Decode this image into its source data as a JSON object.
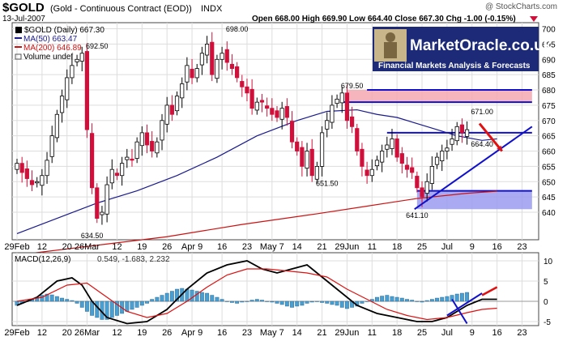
{
  "header": {
    "symbol": "$GOLD",
    "description": "(Gold - Continuous Contract (EOD))",
    "exchange": "INDX",
    "date": "13-Jul-2007",
    "copyright": "@ StockCharts.com",
    "ohlc": "Open 668.00  High 669.90  Low 664.40  Close 667.30  Chg -1.00 (-0.15%)",
    "ohlc_arrow_icon": "down-triangle-icon"
  },
  "legend": {
    "symbol_line": "$GOLD (Daily) 667.30",
    "ma50": "MA(50) 663.47",
    "ma200": "MA(200) 646.89",
    "volume": "Volume undef"
  },
  "logo": {
    "name": "MarketOracle.co.uk",
    "tagline": "Financial Markets Analysis & Forecasts"
  },
  "colors": {
    "up_candle": "#ffffff",
    "down_candle": "#d0103a",
    "ma50": "#1a1a8c",
    "ma200": "#cc1111",
    "resistance_zone": "#f4a7b0",
    "support_zone": "#9b9bf0",
    "trend_line": "#1010cc",
    "annotation_arrow": "#e01010",
    "macd_line": "#000000",
    "signal_line": "#dd1111",
    "histogram": "#4a9fd0"
  },
  "chart_data": [
    {
      "type": "candlestick",
      "ylim": [
        631,
        702
      ],
      "yticks": [
        640,
        645,
        650,
        655,
        660,
        665,
        670,
        675,
        680,
        685,
        690,
        695,
        700
      ],
      "xticks": [
        {
          "day": 0,
          "label": "29Feb"
        },
        {
          "day": 5,
          "label": "12"
        },
        {
          "day": 10,
          "label": "20"
        },
        {
          "day": 14,
          "label": "26Mar"
        },
        {
          "day": 20,
          "label": "12"
        },
        {
          "day": 25,
          "label": "19"
        },
        {
          "day": 30,
          "label": "26"
        },
        {
          "day": 35,
          "label": "Apr 9"
        },
        {
          "day": 41,
          "label": "16"
        },
        {
          "day": 46,
          "label": "23"
        },
        {
          "day": 51,
          "label": "May 7"
        },
        {
          "day": 56,
          "label": "14"
        },
        {
          "day": 61,
          "label": "21"
        },
        {
          "day": 66,
          "label": "29Jun"
        },
        {
          "day": 71,
          "label": "11"
        },
        {
          "day": 76,
          "label": "18"
        },
        {
          "day": 81,
          "label": "25"
        },
        {
          "day": 86,
          "label": "Jul"
        },
        {
          "day": 91,
          "label": "9"
        },
        {
          "day": 96,
          "label": "16"
        },
        {
          "day": 101,
          "label": "23"
        }
      ],
      "annotations": [
        {
          "day": 16,
          "price": 692.5,
          "label": "692.50"
        },
        {
          "day": 15,
          "price": 634.5,
          "label": "634.50"
        },
        {
          "day": 44,
          "price": 698.0,
          "label": "698.00"
        },
        {
          "day": 67,
          "price": 679.5,
          "label": "679.50"
        },
        {
          "day": 62,
          "price": 651.5,
          "label": "651.50"
        },
        {
          "day": 80,
          "price": 641.1,
          "label": "641.10"
        },
        {
          "day": 93,
          "price": 671.0,
          "label": "671.00"
        },
        {
          "day": 93,
          "price": 664.4,
          "label": "664.40"
        }
      ],
      "zones": [
        {
          "name": "resistance",
          "from_day": 66,
          "to_day": 103,
          "low": 676,
          "high": 680
        },
        {
          "name": "support",
          "from_day": 80,
          "to_day": 103,
          "low": 641,
          "high": 647
        }
      ],
      "hlines": [
        {
          "from_day": 70,
          "to_day": 103,
          "price": 680
        },
        {
          "from_day": 65,
          "to_day": 103,
          "price": 676
        },
        {
          "from_day": 74,
          "to_day": 103,
          "price": 666
        },
        {
          "from_day": 80,
          "to_day": 103,
          "price": 647
        }
      ],
      "trend_lines": [
        {
          "from": [
            79.5,
            641
          ],
          "to": [
            103,
            668
          ]
        }
      ],
      "arrows": [
        {
          "from": [
            92.5,
            669
          ],
          "to": [
            97,
            660
          ]
        }
      ],
      "ma50": [
        [
          0,
          633
        ],
        [
          8,
          638
        ],
        [
          16,
          643
        ],
        [
          24,
          647
        ],
        [
          32,
          652
        ],
        [
          40,
          658
        ],
        [
          48,
          665
        ],
        [
          56,
          670
        ],
        [
          62,
          673
        ],
        [
          68,
          673.5
        ],
        [
          72,
          672
        ],
        [
          76,
          671
        ],
        [
          80,
          669
        ],
        [
          84,
          667
        ],
        [
          88,
          665
        ],
        [
          93,
          663.5
        ],
        [
          96,
          664
        ]
      ],
      "ma200": [
        [
          0,
          626
        ],
        [
          15,
          629
        ],
        [
          30,
          632
        ],
        [
          45,
          636
        ],
        [
          60,
          639.5
        ],
        [
          70,
          642
        ],
        [
          80,
          644.5
        ],
        [
          90,
          646.2
        ],
        [
          96,
          646.9
        ]
      ],
      "closes": [
        656,
        653,
        651,
        649,
        650,
        652,
        657,
        665,
        672,
        678,
        684,
        688,
        690,
        692,
        667,
        648,
        638,
        640,
        649,
        654,
        652,
        656,
        658,
        657,
        663,
        666,
        662,
        660,
        663,
        670,
        675,
        672,
        678,
        682,
        688,
        684,
        687,
        692,
        695,
        685,
        690,
        692,
        689,
        687,
        684,
        681,
        679,
        674,
        676,
        676,
        674,
        672,
        671,
        674,
        671,
        663,
        660,
        655,
        660,
        652,
        655,
        666,
        670,
        675,
        677,
        679,
        670,
        668,
        660,
        655,
        652,
        654,
        657,
        660,
        662,
        664,
        658,
        656,
        654,
        653,
        648,
        645,
        650,
        655,
        658,
        660,
        661,
        664,
        668,
        666,
        667
      ]
    },
    {
      "type": "line",
      "title": "MACD(12,26,9)",
      "values": "0.549, -1.683, 2.232",
      "ylim": [
        -6,
        12
      ],
      "yticks": [
        -5,
        0,
        5,
        10
      ],
      "macd": [
        [
          0,
          -1
        ],
        [
          4,
          1
        ],
        [
          8,
          5
        ],
        [
          11,
          5.8
        ],
        [
          13,
          4
        ],
        [
          15,
          0
        ],
        [
          18,
          -4
        ],
        [
          22,
          -5.5
        ],
        [
          26,
          -5
        ],
        [
          30,
          -2
        ],
        [
          34,
          3
        ],
        [
          38,
          7
        ],
        [
          42,
          9
        ],
        [
          46,
          10
        ],
        [
          49,
          8
        ],
        [
          52,
          7
        ],
        [
          55,
          8
        ],
        [
          58,
          9
        ],
        [
          61,
          6
        ],
        [
          64,
          3
        ],
        [
          68,
          -1
        ],
        [
          72,
          -3
        ],
        [
          76,
          -4
        ],
        [
          80,
          -5
        ],
        [
          83,
          -5
        ],
        [
          86,
          -4
        ],
        [
          90,
          -1
        ],
        [
          93,
          0.5
        ],
        [
          96,
          0.5
        ]
      ],
      "signal": [
        [
          0,
          0
        ],
        [
          5,
          1
        ],
        [
          10,
          4
        ],
        [
          14,
          4.5
        ],
        [
          18,
          1
        ],
        [
          22,
          -2.5
        ],
        [
          26,
          -4
        ],
        [
          30,
          -3
        ],
        [
          34,
          0
        ],
        [
          38,
          3.5
        ],
        [
          42,
          6.5
        ],
        [
          46,
          8
        ],
        [
          50,
          8
        ],
        [
          54,
          7.5
        ],
        [
          58,
          7
        ],
        [
          62,
          6
        ],
        [
          66,
          3
        ],
        [
          70,
          0.5
        ],
        [
          74,
          -2
        ],
        [
          78,
          -3.5
        ],
        [
          82,
          -4.5
        ],
        [
          86,
          -4
        ],
        [
          90,
          -2.8
        ],
        [
          93,
          -2
        ],
        [
          96,
          -1.7
        ]
      ],
      "histogram": [
        -1,
        -0.5,
        0,
        0.5,
        1,
        1.5,
        1.8,
        1.6,
        1.2,
        0.8,
        0.5,
        0.2,
        -0.5,
        -1.5,
        -2.5,
        -3.5,
        -4,
        -4.5,
        -4.5,
        -4,
        -3.5,
        -3,
        -2.5,
        -2,
        -1.5,
        -1,
        -0.5,
        0.5,
        1,
        1.5,
        2,
        2.5,
        3,
        3.2,
        3,
        2.8,
        2.5,
        2.2,
        2,
        1.5,
        1,
        0.5,
        0,
        -0.3,
        -0.5,
        -0.2,
        0,
        0.3,
        0.5,
        0.3,
        0,
        -0.2,
        -0.5,
        -0.8,
        -1.2,
        -1.5,
        -1.2,
        -1,
        -0.5,
        -0.2,
        0,
        -0.3,
        -0.5,
        -0.8,
        -1,
        -1.5,
        -1.8,
        -1.5,
        -1.2,
        -0.5,
        0,
        0.5,
        1,
        1.3,
        1.5,
        1.2,
        1,
        0.8,
        0.5,
        0.3,
        0,
        -0.2,
        0.2,
        0.5,
        0.8,
        1,
        1.2,
        1.5,
        1.8,
        2,
        2.2
      ]
    }
  ]
}
